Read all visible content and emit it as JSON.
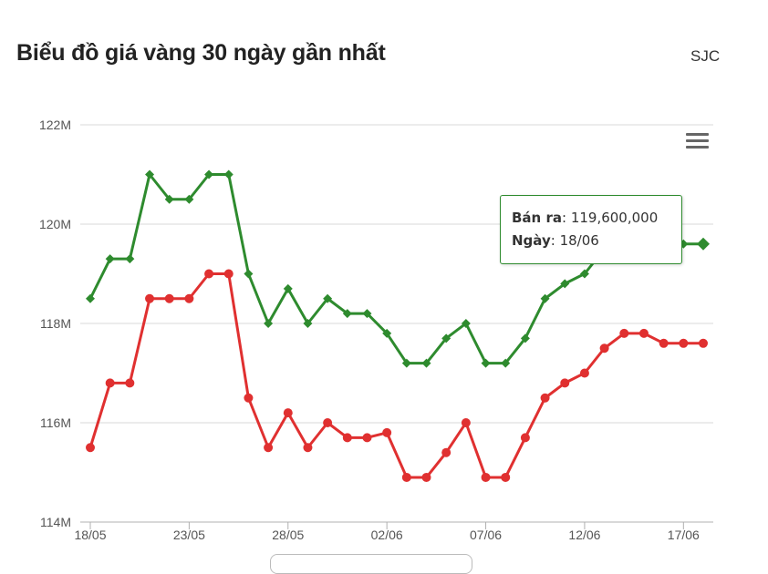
{
  "header": {
    "title": "Biểu đồ giá vàng 30 ngày gần nhất",
    "brand": "SJC"
  },
  "tooltip": {
    "label1": "Bán ra",
    "value1": "119,600,000",
    "label2": "Ngày",
    "value2": "18/06"
  },
  "icons": {
    "menu": "hamburger-menu-icon"
  },
  "colors": {
    "sell": "#2e8b2e",
    "buy": "#e03030",
    "grid": "#d8d8d8"
  },
  "chart_data": {
    "type": "line",
    "yticks": [
      "114M",
      "116M",
      "118M",
      "120M",
      "122M"
    ],
    "ylim": [
      114,
      122
    ],
    "xticks": [
      {
        "label": "18/05",
        "index": 0
      },
      {
        "label": "23/05",
        "index": 5
      },
      {
        "label": "28/05",
        "index": 10
      },
      {
        "label": "02/06",
        "index": 15
      },
      {
        "label": "07/06",
        "index": 20
      },
      {
        "label": "12/06",
        "index": 25
      },
      {
        "label": "17/06",
        "index": 30
      }
    ],
    "series": [
      {
        "role": "sell",
        "marker": "diamond",
        "values": [
          118.5,
          119.3,
          119.3,
          121.0,
          120.5,
          120.5,
          121.0,
          121.0,
          119.0,
          118.0,
          118.7,
          118.0,
          118.5,
          118.2,
          118.2,
          117.8,
          117.2,
          117.2,
          117.7,
          118.0,
          117.2,
          117.2,
          117.7,
          118.5,
          118.8,
          119.0,
          119.5,
          120.3,
          120.3,
          119.6,
          119.6,
          119.6
        ]
      },
      {
        "role": "buy",
        "marker": "circle",
        "values": [
          115.5,
          116.8,
          116.8,
          118.5,
          118.5,
          118.5,
          119.0,
          119.0,
          116.5,
          115.5,
          116.2,
          115.5,
          116.0,
          115.7,
          115.7,
          115.8,
          114.9,
          114.9,
          115.4,
          116.0,
          114.9,
          114.9,
          115.7,
          116.5,
          116.8,
          117.0,
          117.5,
          117.8,
          117.8,
          117.6,
          117.6,
          117.6
        ]
      }
    ],
    "highlight_index": 31
  }
}
